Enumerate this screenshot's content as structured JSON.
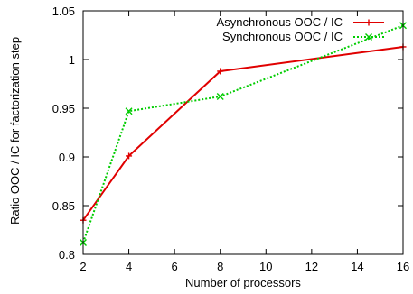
{
  "chart_data": {
    "type": "line",
    "xlabel": "Number of processors",
    "ylabel": "Ratio OOC / IC for factorization step",
    "xlim": [
      2,
      16
    ],
    "ylim": [
      0.8,
      1.05
    ],
    "xticks": [
      2,
      4,
      6,
      8,
      10,
      12,
      14,
      16
    ],
    "yticks": [
      "0.8",
      "0.85",
      "0.9",
      "0.95",
      "1",
      "1.05"
    ],
    "grid": false,
    "legend_position": "top-right",
    "series": [
      {
        "name": "Asynchronous OOC / IC",
        "color": "#e00000",
        "dash": "solid",
        "marker": "plus",
        "x": [
          2,
          4,
          8,
          16
        ],
        "y": [
          0.835,
          0.901,
          0.988,
          1.013
        ]
      },
      {
        "name": "Synchronous OOC / IC",
        "color": "#00cc00",
        "dash": "dotted",
        "marker": "cross",
        "x": [
          2,
          4,
          8,
          16
        ],
        "y": [
          0.812,
          0.947,
          0.962,
          1.035
        ]
      }
    ]
  }
}
